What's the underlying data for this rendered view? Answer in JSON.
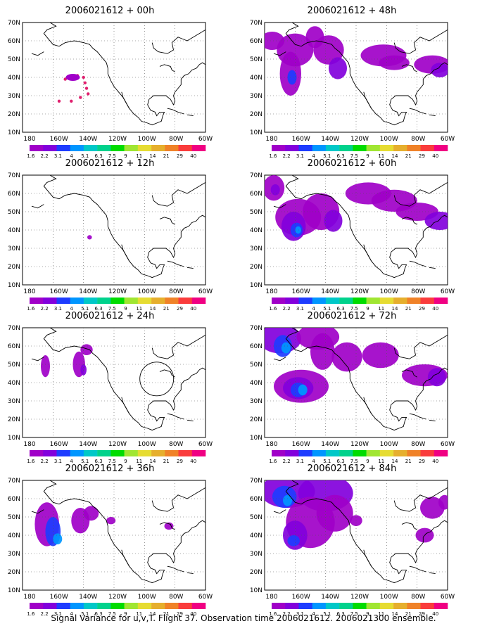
{
  "caption": "Signal Variance for u,v,T. Flight 37. Observation time 2006021612. 2006021300 ensemble.",
  "lat_labels": [
    "70N",
    "60N",
    "50N",
    "40N",
    "30N",
    "20N",
    "10N"
  ],
  "lon_labels": [
    "180",
    "160W",
    "140W",
    "120W",
    "100W",
    "80W",
    "60W"
  ],
  "colorbar": {
    "labels": [
      "1.6",
      "2.2",
      "3.1",
      "4",
      "5.1",
      "6.3",
      "7.5",
      "9",
      "11",
      "14",
      "21",
      "29",
      "40"
    ],
    "colors": [
      "#a000c8",
      "#8200dc",
      "#1e3cff",
      "#0096ff",
      "#00c8c8",
      "#00d28c",
      "#00dc00",
      "#a0e632",
      "#e6dc32",
      "#e6af2d",
      "#f08228",
      "#fa3c3c",
      "#f00082"
    ]
  },
  "panels": [
    {
      "title": "2006021612 + 00h"
    },
    {
      "title": "2006021612 + 48h"
    },
    {
      "title": "2006021612 + 12h"
    },
    {
      "title": "2006021612 + 60h"
    },
    {
      "title": "2006021612 + 24h"
    },
    {
      "title": "2006021612 + 72h"
    },
    {
      "title": "2006021612 + 36h"
    },
    {
      "title": "2006021612 + 84h"
    }
  ]
}
